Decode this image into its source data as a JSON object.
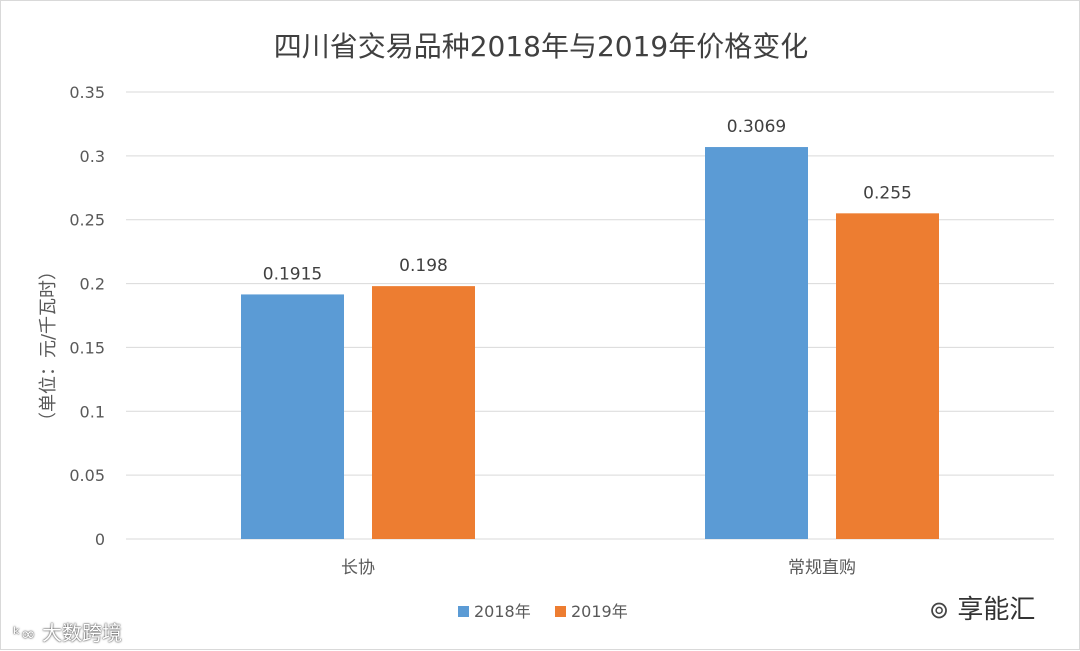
{
  "chart_data": {
    "type": "bar",
    "title": "四川省交易品种2018年与2019年价格变化",
    "xlabel": "",
    "ylabel": "（单位：元/千瓦时）",
    "categories": [
      "长协",
      "常规直购"
    ],
    "series": [
      {
        "name": "2018年",
        "values": [
          0.1915,
          0.3069
        ],
        "labels": [
          "0.1915",
          "0.3069"
        ],
        "color": "#5b9bd5"
      },
      {
        "name": "2019年",
        "values": [
          0.198,
          0.255
        ],
        "labels": [
          "0.198",
          "0.255"
        ],
        "color": "#ed7d31"
      }
    ],
    "yticks": [
      0,
      0.05,
      0.1,
      0.15,
      0.2,
      0.25,
      0.3,
      0.35
    ],
    "ytick_labels": [
      "0",
      "0.05",
      "0.1",
      "0.15",
      "0.2",
      "0.25",
      "0.3",
      "0.35"
    ],
    "ylim": [
      0,
      0.35
    ],
    "grid": true,
    "legend": "bottom"
  },
  "watermarks": {
    "left": "大数跨境",
    "right": "享能汇"
  },
  "colors": {
    "grid": "#d9d9d9",
    "text": "#595959",
    "title": "#404040"
  }
}
